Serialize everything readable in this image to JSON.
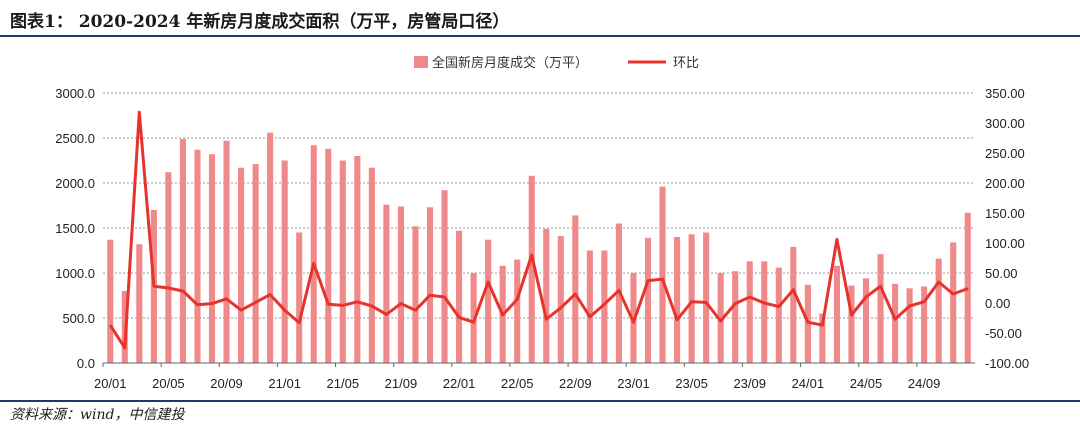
{
  "header": {
    "title": "图表1： 2020-2024 年新房月度成交面积（万平，房管局口径）"
  },
  "footer": {
    "source": "资料来源：wind，中信建投"
  },
  "chart_data": {
    "type": "bar",
    "title": "2020-2024 年新房月度成交面积（万平，房管局口径）",
    "xlabel": "",
    "ylabel": "",
    "x_tick_labels": [
      "20/01",
      "20/05",
      "20/09",
      "21/01",
      "21/05",
      "21/09",
      "22/01",
      "22/05",
      "22/09",
      "23/01",
      "23/05",
      "23/09",
      "24/01",
      "24/05",
      "24/09"
    ],
    "y_left": {
      "range": [
        0,
        3000
      ],
      "ticks": [
        "0.0",
        "500.0",
        "1000.0",
        "1500.0",
        "2000.0",
        "2500.0",
        "3000.0"
      ]
    },
    "y_right": {
      "range": [
        -100,
        350
      ],
      "ticks": [
        "-100.00",
        "-50.00",
        "0.00",
        "50.00",
        "100.00",
        "150.00",
        "200.00",
        "250.00",
        "300.00",
        "350.00"
      ]
    },
    "grid": "horizontal-dashed",
    "legend_position": "top-center",
    "series": [
      {
        "name": "全国新房月度成交（万平）",
        "type": "bar",
        "axis": "left",
        "color": "#f08a8a",
        "values": [
          1370,
          800,
          1320,
          1700,
          2120,
          2490,
          2370,
          2320,
          2470,
          2170,
          2210,
          2560,
          2250,
          1450,
          2420,
          2380,
          2250,
          2300,
          2170,
          1760,
          1740,
          1520,
          1730,
          1920,
          1470,
          1000,
          1370,
          1080,
          1150,
          2080,
          1490,
          1410,
          1640,
          1250,
          1250,
          1550,
          1000,
          1390,
          1960,
          1400,
          1430,
          1450,
          1000,
          1020,
          1130,
          1130,
          1060,
          1290,
          870,
          550,
          1080,
          860,
          940,
          1210,
          880,
          830,
          850,
          1160,
          1340,
          1670
        ]
      },
      {
        "name": "环比",
        "type": "line",
        "axis": "right",
        "color": "#e8332d",
        "values": [
          -37,
          -75,
          318,
          28,
          25,
          20,
          -3,
          -1,
          7,
          -12,
          1,
          14,
          -12,
          -33,
          66,
          -2,
          -4,
          2,
          -5,
          -19,
          -1,
          -12,
          13,
          10,
          -24,
          -32,
          35,
          -20,
          6,
          80,
          -27,
          -8,
          15,
          -23,
          -2,
          21,
          -32,
          37,
          40,
          -28,
          2,
          1,
          -30,
          -1,
          10,
          0,
          -6,
          22,
          -32,
          -37,
          106,
          -20,
          10,
          28,
          -27,
          -5,
          2,
          35,
          15,
          24
        ]
      }
    ]
  }
}
